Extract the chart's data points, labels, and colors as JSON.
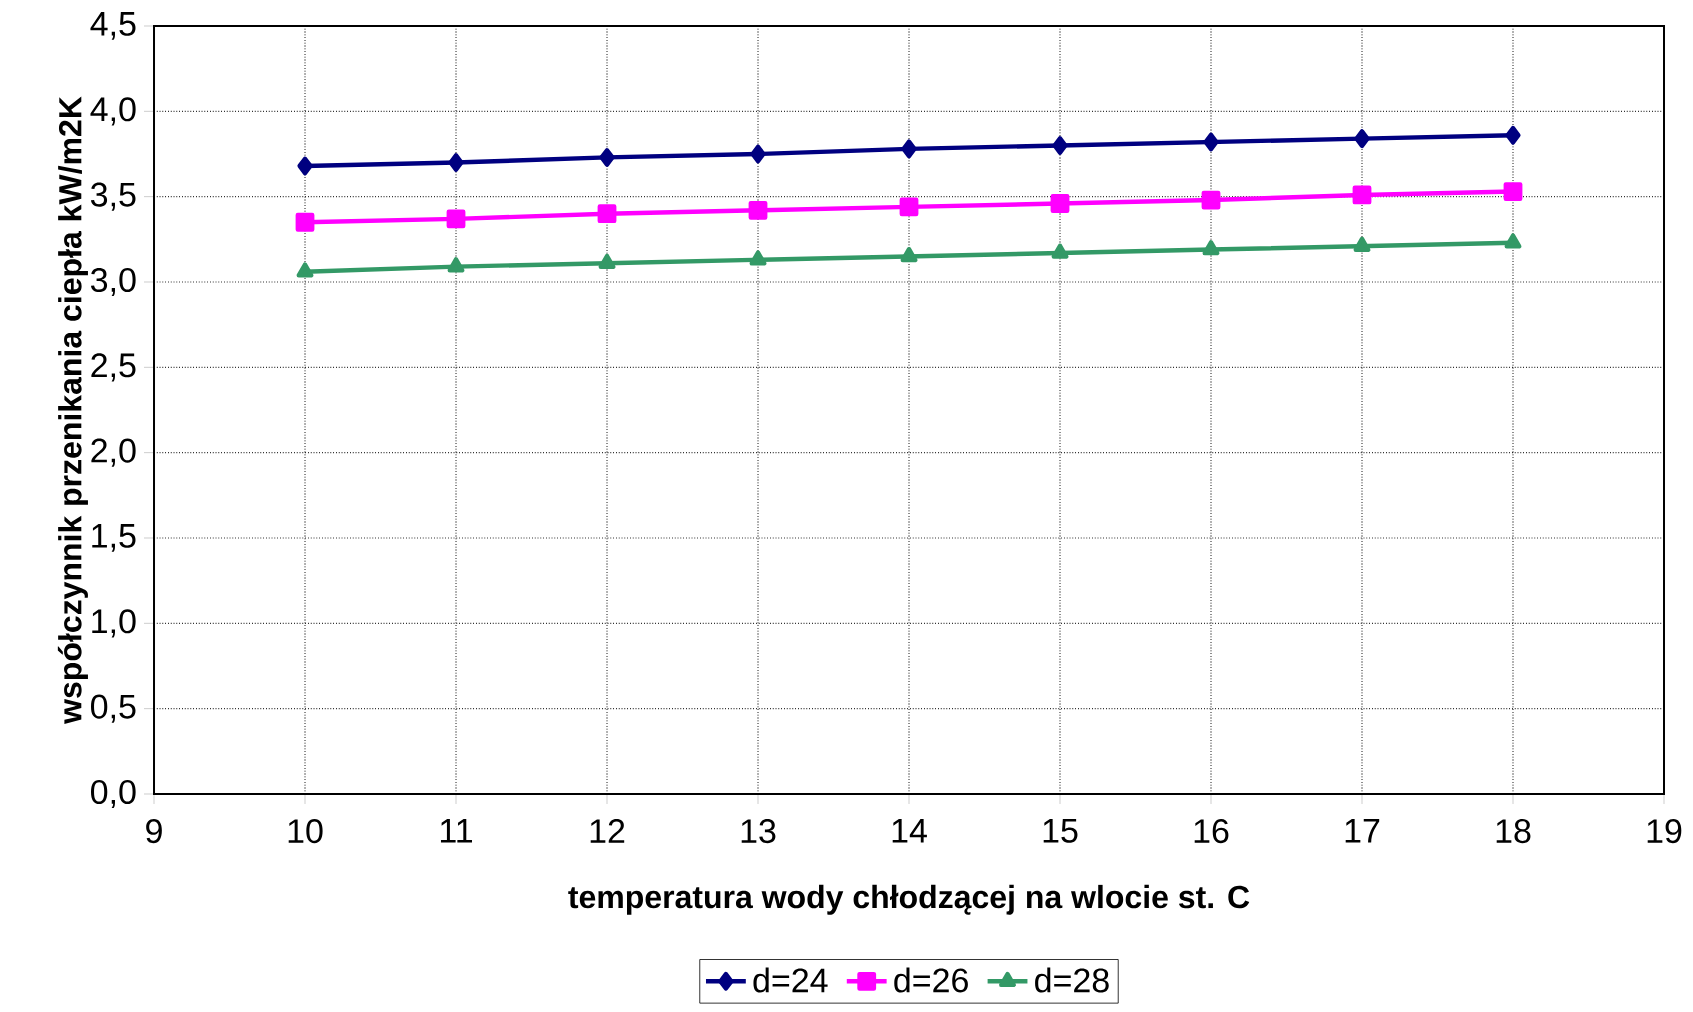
{
  "chart_data": {
    "type": "line",
    "xlabel": "temperatura wody chłodzącej na wlocie st. C",
    "ylabel": "współczynnik przenikania ciepła kW/m2K",
    "x": [
      10,
      11,
      12,
      13,
      14,
      15,
      16,
      17,
      18
    ],
    "series": [
      {
        "name": "d=24",
        "color": "#000080",
        "marker": "diamond",
        "values": [
          3.68,
          3.7,
          3.73,
          3.75,
          3.78,
          3.8,
          3.82,
          3.84,
          3.86
        ]
      },
      {
        "name": "d=26",
        "color": "#ff00ff",
        "marker": "square",
        "values": [
          3.35,
          3.37,
          3.4,
          3.42,
          3.44,
          3.46,
          3.48,
          3.51,
          3.53
        ]
      },
      {
        "name": "d=28",
        "color": "#339966",
        "marker": "triangle",
        "values": [
          3.06,
          3.09,
          3.11,
          3.13,
          3.15,
          3.17,
          3.19,
          3.21,
          3.23
        ]
      }
    ],
    "xlim": [
      9,
      19
    ],
    "xticks": [
      9,
      10,
      11,
      12,
      13,
      14,
      15,
      16,
      17,
      18,
      19
    ],
    "ylim": [
      0,
      4.5
    ],
    "yticks": [
      {
        "value": 0,
        "label": "0,0"
      },
      {
        "value": 0.5,
        "label": "0,5"
      },
      {
        "value": 1,
        "label": "1,0"
      },
      {
        "value": 1.5,
        "label": "1,5"
      },
      {
        "value": 2,
        "label": "2,0"
      },
      {
        "value": 2.5,
        "label": "2,5"
      },
      {
        "value": 3,
        "label": "3,0"
      },
      {
        "value": 3.5,
        "label": "3,5"
      },
      {
        "value": 4,
        "label": "4,0"
      },
      {
        "value": 4.5,
        "label": "4,5"
      }
    ],
    "grid": true,
    "legend": "bottom",
    "line_style": "solid"
  }
}
